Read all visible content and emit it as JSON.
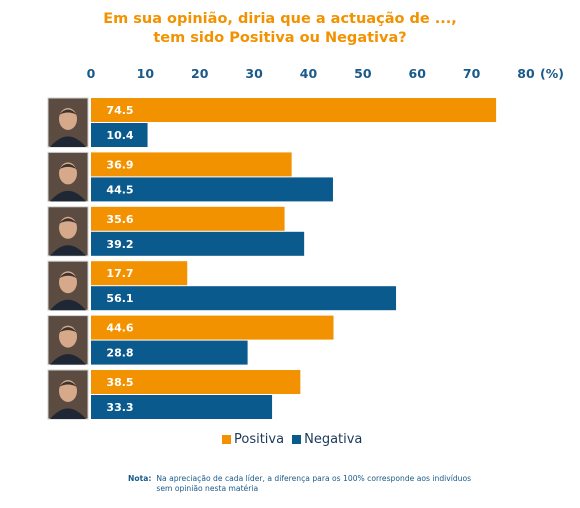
{
  "title": {
    "line1": "Em sua opinião, diria que a actuação de ...,",
    "line2": "tem sido Positiva ou Negativa?"
  },
  "chart_data": {
    "type": "bar",
    "orientation": "horizontal",
    "title": "Em sua opinião, diria que a actuação de ..., tem sido Positiva ou Negativa?",
    "unit_label": "(%)",
    "xlim": [
      0,
      80
    ],
    "ticks": [
      "0",
      "10",
      "20",
      "30",
      "40",
      "50",
      "60",
      "70",
      "80"
    ],
    "grid": false,
    "legend_position": "bottom",
    "categories": [
      "",
      "",
      "",
      "",
      "",
      ""
    ],
    "series": [
      {
        "name": "Positiva",
        "color": "#f39200",
        "values": [
          74.5,
          36.9,
          35.6,
          17.7,
          44.6,
          38.5
        ],
        "labels": [
          "74.5",
          "36.9",
          "35.6",
          "17.7",
          "44.6",
          "38.5"
        ]
      },
      {
        "name": "Negativa",
        "color": "#0b5a8e",
        "values": [
          10.4,
          44.5,
          39.2,
          56.1,
          28.8,
          33.3
        ],
        "labels": [
          "10.4",
          "44.5",
          "39.2",
          "56.1",
          "28.8",
          "33.3"
        ]
      }
    ]
  },
  "photos": [
    "person-photo-icon",
    "person-photo-icon",
    "person-photo-icon",
    "person-photo-icon",
    "person-photo-icon",
    "person-photo-icon"
  ],
  "note": {
    "label": "Nota:",
    "text": "Na apreciação de cada líder, a diferença para os 100% corresponde aos indivíduos sem opinião nesta matéria"
  }
}
